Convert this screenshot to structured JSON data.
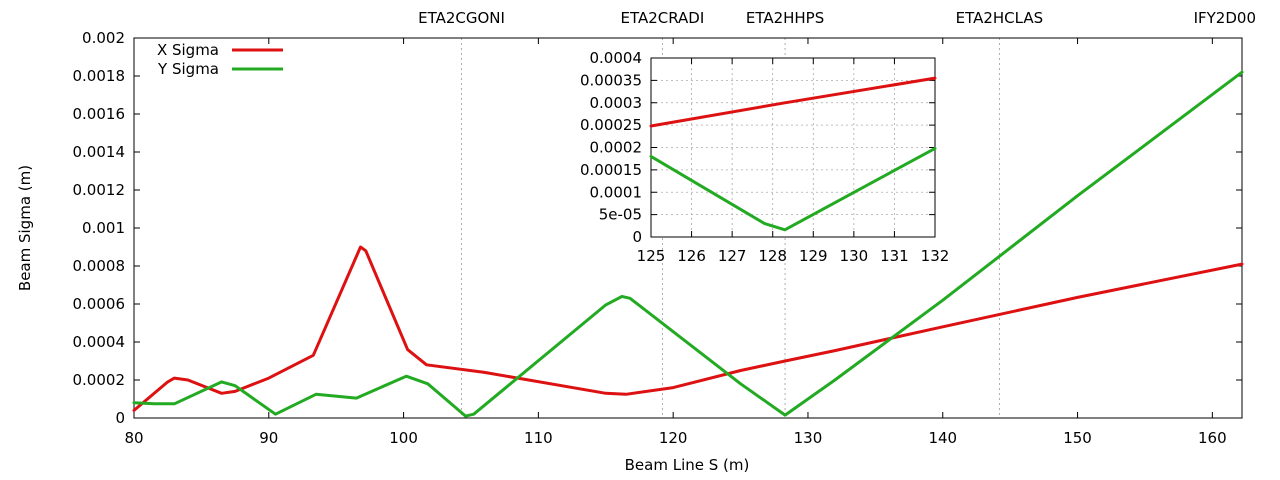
{
  "chart_data": [
    {
      "type": "line",
      "title": "",
      "xlabel": "Beam Line S (m)",
      "ylabel": "Beam Sigma (m)",
      "xlim": [
        80,
        162.2
      ],
      "ylim": [
        0,
        0.002
      ],
      "x_ticks": [
        80,
        90,
        100,
        110,
        120,
        130,
        140,
        150,
        160
      ],
      "x_tick_labels": [
        "80",
        "90",
        "100",
        "110",
        "120",
        "130",
        "140",
        "150",
        "160"
      ],
      "y_ticks": [
        0,
        0.0002,
        0.0004,
        0.0006,
        0.0008,
        0.001,
        0.0012,
        0.0014,
        0.0016,
        0.0018,
        0.002
      ],
      "y_tick_labels": [
        "0",
        "0.0002",
        "0.0004",
        "0.0006",
        "0.0008",
        "0.001",
        "0.0012",
        "0.0014",
        "0.0016",
        "0.0018",
        "0.002"
      ],
      "grid": false,
      "legend_position": "top-left",
      "markers": [
        {
          "label": "ETA2CGONI",
          "x": 104.3
        },
        {
          "label": "ETA2CRADI",
          "x": 119.2
        },
        {
          "label": "ETA2HHPS",
          "x": 128.3
        },
        {
          "label": "ETA2HCLAS",
          "x": 144.2
        },
        {
          "label": "IFY2D00",
          "x": 162.2
        }
      ],
      "series": [
        {
          "name": "X Sigma",
          "color": "#dd1111",
          "points": [
            [
              80,
              4e-05
            ],
            [
              82.5,
              0.00019
            ],
            [
              83,
              0.00021
            ],
            [
              84,
              0.0002
            ],
            [
              86.5,
              0.00013
            ],
            [
              87.5,
              0.00014
            ],
            [
              90,
              0.00021
            ],
            [
              93.3,
              0.00033
            ],
            [
              96.8,
              0.0009
            ],
            [
              97.2,
              0.00088
            ],
            [
              100.3,
              0.00036
            ],
            [
              101.7,
              0.00028
            ],
            [
              106,
              0.00024
            ],
            [
              115,
              0.00013
            ],
            [
              116.5,
              0.000125
            ],
            [
              120,
              0.00016
            ],
            [
              125,
              0.00025
            ],
            [
              128.3,
              0.0003
            ],
            [
              132,
              0.000355
            ],
            [
              140,
              0.00048
            ],
            [
              150,
              0.000635
            ],
            [
              162.2,
              0.00081
            ]
          ]
        },
        {
          "name": "Y Sigma",
          "color": "#22aa22",
          "points": [
            [
              80,
              8e-05
            ],
            [
              81.5,
              7.5e-05
            ],
            [
              83,
              7.5e-05
            ],
            [
              86.5,
              0.00019
            ],
            [
              87.5,
              0.00017
            ],
            [
              90.5,
              2e-05
            ],
            [
              93.5,
              0.000125
            ],
            [
              96.5,
              0.000105
            ],
            [
              100.2,
              0.00022
            ],
            [
              101.8,
              0.00018
            ],
            [
              104.6,
              1e-05
            ],
            [
              105.2,
              2e-05
            ],
            [
              115,
              0.000595
            ],
            [
              116.2,
              0.00064
            ],
            [
              116.8,
              0.00063
            ],
            [
              125,
              0.00018
            ],
            [
              128.3,
              1.5e-05
            ],
            [
              132,
              0.0002
            ],
            [
              140,
              0.00062
            ],
            [
              150,
              0.00117
            ],
            [
              162.2,
              0.00182
            ]
          ]
        }
      ]
    },
    {
      "type": "line",
      "title": "",
      "xlabel": "",
      "ylabel": "",
      "xlim": [
        125,
        132
      ],
      "ylim": [
        0,
        0.0004
      ],
      "x_ticks": [
        125,
        126,
        127,
        128,
        129,
        130,
        131,
        132
      ],
      "x_tick_labels": [
        "125",
        "126",
        "127",
        "128",
        "129",
        "130",
        "131",
        "132"
      ],
      "y_ticks": [
        0,
        5e-05,
        0.0001,
        0.00015,
        0.0002,
        0.00025,
        0.0003,
        0.00035,
        0.0004
      ],
      "y_tick_labels": [
        "0",
        "5e-05",
        "0.0001",
        "0.00015",
        "0.0002",
        "0.00025",
        "0.0003",
        "0.00035",
        "0.0004"
      ],
      "grid": true,
      "series": [
        {
          "name": "X Sigma",
          "color": "#dd1111",
          "points": [
            [
              125,
              0.000248
            ],
            [
              128.3,
              0.0003
            ],
            [
              132,
              0.000355
            ]
          ]
        },
        {
          "name": "Y Sigma",
          "color": "#22aa22",
          "points": [
            [
              125,
              0.00018
            ],
            [
              127.8,
              3e-05
            ],
            [
              128.3,
              1.6e-05
            ],
            [
              132,
              0.000198
            ]
          ]
        }
      ]
    }
  ]
}
